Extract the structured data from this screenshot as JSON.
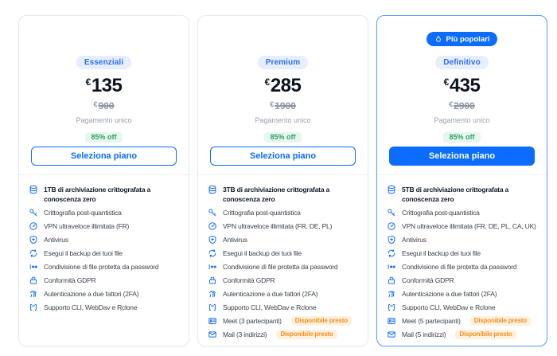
{
  "colors": {
    "accent": "#0c6cff",
    "popular_border": "#5b9bff",
    "card_border": "#e8eaef",
    "divider": "#edeff3",
    "plan_badge_bg": "#e7eeff",
    "plan_badge_text": "#2e6ff2",
    "discount_bg": "#e7f7ee",
    "discount_text": "#2ba368",
    "coming_soon_bg": "#fff1de",
    "coming_soon_text": "#f29123"
  },
  "cards": [
    {
      "plan": "Essenziali",
      "popular": false,
      "popular_label": "",
      "currency": "€",
      "price": "135",
      "old_currency": "€",
      "old_price": "900",
      "payment_note": "Pagamento unico",
      "discount_badge": "85% off",
      "cta_label": "Seleziona piano",
      "cta_variant": "outline",
      "features": [
        {
          "icon": "storage-icon",
          "text": "1TB di archiviazione crittografata a conoscenza zero",
          "bold": true
        },
        {
          "icon": "key-icon",
          "text": "Crittografia post-quantistica"
        },
        {
          "icon": "speedometer-icon",
          "text": "VPN ultraveloce illimitata (FR)"
        },
        {
          "icon": "shield-plus-icon",
          "text": "Antivirus"
        },
        {
          "icon": "sync-icon",
          "text": "Esegui il backup dei tuoi file"
        },
        {
          "icon": "password-share-icon",
          "text": "Condivisione di file protetta da password"
        },
        {
          "icon": "lock-icon",
          "text": "Conformità GDPR"
        },
        {
          "icon": "fingerprint-icon",
          "text": "Autenticazione a due fattori (2FA)"
        },
        {
          "icon": "terminal-icon",
          "text": "Supporto CLI, WebDav e Rclone"
        }
      ]
    },
    {
      "plan": "Premium",
      "popular": false,
      "popular_label": "",
      "currency": "€",
      "price": "285",
      "old_currency": "€",
      "old_price": "1900",
      "payment_note": "Pagamento unico",
      "discount_badge": "85% off",
      "cta_label": "Seleziona piano",
      "cta_variant": "outline",
      "features": [
        {
          "icon": "storage-icon",
          "text": "3TB di archiviazione crittografata a conoscenza zero",
          "bold": true
        },
        {
          "icon": "key-icon",
          "text": "Crittografia post-quantistica"
        },
        {
          "icon": "speedometer-icon",
          "text": "VPN ultraveloce illimitata (FR, DE, PL)"
        },
        {
          "icon": "shield-plus-icon",
          "text": "Antivirus"
        },
        {
          "icon": "sync-icon",
          "text": "Esegui il backup dei tuoi file"
        },
        {
          "icon": "password-share-icon",
          "text": "Condivisione di file protetta da password"
        },
        {
          "icon": "lock-icon",
          "text": "Conformità GDPR"
        },
        {
          "icon": "fingerprint-icon",
          "text": "Autenticazione a due fattori (2FA)"
        },
        {
          "icon": "terminal-icon",
          "text": "Supporto CLI, WebDav e Rclone"
        },
        {
          "icon": "meet-icon",
          "text": "Meet (3 partecipanti)",
          "badge": "Disponibile presto"
        },
        {
          "icon": "mail-icon",
          "text": "Mail (3 indirizzi)",
          "badge": "Disponibile presto"
        }
      ]
    },
    {
      "plan": "Definitivo",
      "popular": true,
      "popular_label": "Più popolari",
      "currency": "€",
      "price": "435",
      "old_currency": "€",
      "old_price": "2900",
      "payment_note": "Pagamento unico",
      "discount_badge": "85% off",
      "cta_label": "Seleziona piano",
      "cta_variant": "solid",
      "features": [
        {
          "icon": "storage-icon",
          "text": "5TB di archiviazione crittografata a conoscenza zero",
          "bold": true
        },
        {
          "icon": "key-icon",
          "text": "Crittografia post-quantistica"
        },
        {
          "icon": "speedometer-icon",
          "text": "VPN ultraveloce illimitata (FR, DE, PL, CA, UK)"
        },
        {
          "icon": "shield-plus-icon",
          "text": "Antivirus"
        },
        {
          "icon": "sync-icon",
          "text": "Esegui il backup dei tuoi file"
        },
        {
          "icon": "password-share-icon",
          "text": "Condivisione di file protetta da password"
        },
        {
          "icon": "lock-icon",
          "text": "Conformità GDPR"
        },
        {
          "icon": "fingerprint-icon",
          "text": "Autenticazione a due fattori (2FA)"
        },
        {
          "icon": "terminal-icon",
          "text": "Supporto CLI, WebDav e Rclone"
        },
        {
          "icon": "meet-icon",
          "text": "Meet (5 partecipanti)",
          "badge": "Disponibile presto"
        },
        {
          "icon": "mail-icon",
          "text": "Mail (5 indirizzi)",
          "badge": "Disponibile presto"
        }
      ]
    }
  ]
}
